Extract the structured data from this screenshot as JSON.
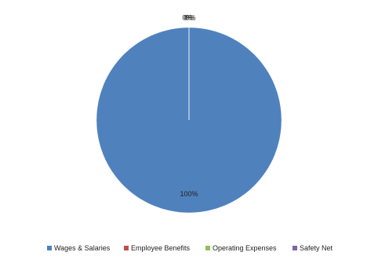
{
  "chart_data": {
    "type": "pie",
    "categories": [
      "Wages & Salaries",
      "Employee Benefits",
      "Operating Expenses",
      "Safety Net"
    ],
    "values": [
      100,
      0,
      0,
      0
    ],
    "value_labels": [
      "100%",
      "0%",
      "0%",
      "0%"
    ],
    "colors": [
      "#4f81bd",
      "#c0504d",
      "#9bbb59",
      "#8064a2"
    ],
    "legend": "bottom"
  }
}
